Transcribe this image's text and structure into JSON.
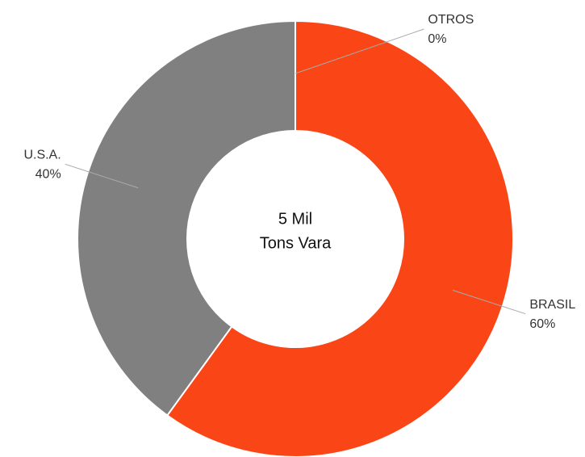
{
  "chart_data": {
    "type": "pie",
    "donut": true,
    "center_text": [
      "5 Mil",
      "Tons Vara"
    ],
    "categories": [
      "BRASIL",
      "U.S.A.",
      "OTROS"
    ],
    "values": [
      60,
      40,
      0
    ],
    "value_labels": [
      "60%",
      "40%",
      "0%"
    ],
    "colors": [
      "#fa4616",
      "#808080",
      "#bdbdbd"
    ]
  }
}
